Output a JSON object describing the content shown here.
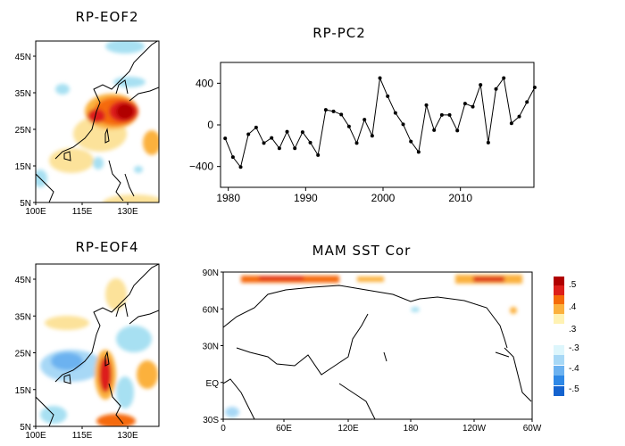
{
  "panels": {
    "eof2": {
      "title": "RP-EOF2",
      "lat_ticks": [
        "45N",
        "35N",
        "25N",
        "15N",
        "5N"
      ],
      "lon_ticks": [
        "100E",
        "115E",
        "130E"
      ]
    },
    "eof4": {
      "title": "RP-EOF4",
      "lat_ticks": [
        "45N",
        "35N",
        "25N",
        "15N",
        "5N"
      ],
      "lon_ticks": [
        "100E",
        "115E",
        "130E"
      ]
    },
    "sst": {
      "title": "MAM SST Cor",
      "lat_ticks": [
        "90N",
        "60N",
        "30N",
        "EQ",
        "30S"
      ],
      "lon_ticks": [
        "0",
        "60E",
        "120E",
        "180",
        "120W",
        "60W"
      ]
    }
  },
  "colorbar": {
    "labels": [
      ".5",
      ".4",
      ".3",
      "-.3",
      "-.4",
      "-.5"
    ],
    "colors_positive": [
      "#b00000",
      "#dd1f1a",
      "#f56b08",
      "#fbb13e",
      "#fff2b3"
    ],
    "colors_negative": [
      "#ddf6fc",
      "#a7d8f6",
      "#6cb2f0",
      "#2e88e6",
      "#1463cf"
    ]
  },
  "chart_data": {
    "type": "line",
    "title": "RP-PC2",
    "xlabel": "",
    "ylabel": "",
    "xlim": [
      1979,
      2019.5
    ],
    "ylim": [
      -600,
      600
    ],
    "xticks": [
      1980,
      1990,
      2000,
      2010
    ],
    "yticks": [
      400,
      0,
      -400
    ],
    "grid": false,
    "x": [
      1979,
      1980,
      1981,
      1982,
      1983,
      1984,
      1985,
      1986,
      1987,
      1988,
      1989,
      1990,
      1991,
      1992,
      1993,
      1994,
      1995,
      1996,
      1997,
      1998,
      1999,
      2000,
      2001,
      2002,
      2003,
      2004,
      2005,
      2006,
      2007,
      2008,
      2009,
      2010,
      2011,
      2012,
      2013,
      2014,
      2015,
      2016,
      2017,
      2018,
      2019
    ],
    "values": [
      -130,
      -310,
      -405,
      -90,
      -25,
      -175,
      -125,
      -225,
      -65,
      -225,
      -70,
      -170,
      -290,
      145,
      130,
      100,
      -15,
      -175,
      50,
      -105,
      450,
      275,
      115,
      5,
      -160,
      -260,
      190,
      -50,
      95,
      95,
      -55,
      205,
      175,
      385,
      -170,
      345,
      450,
      15,
      80,
      220,
      360
    ]
  }
}
